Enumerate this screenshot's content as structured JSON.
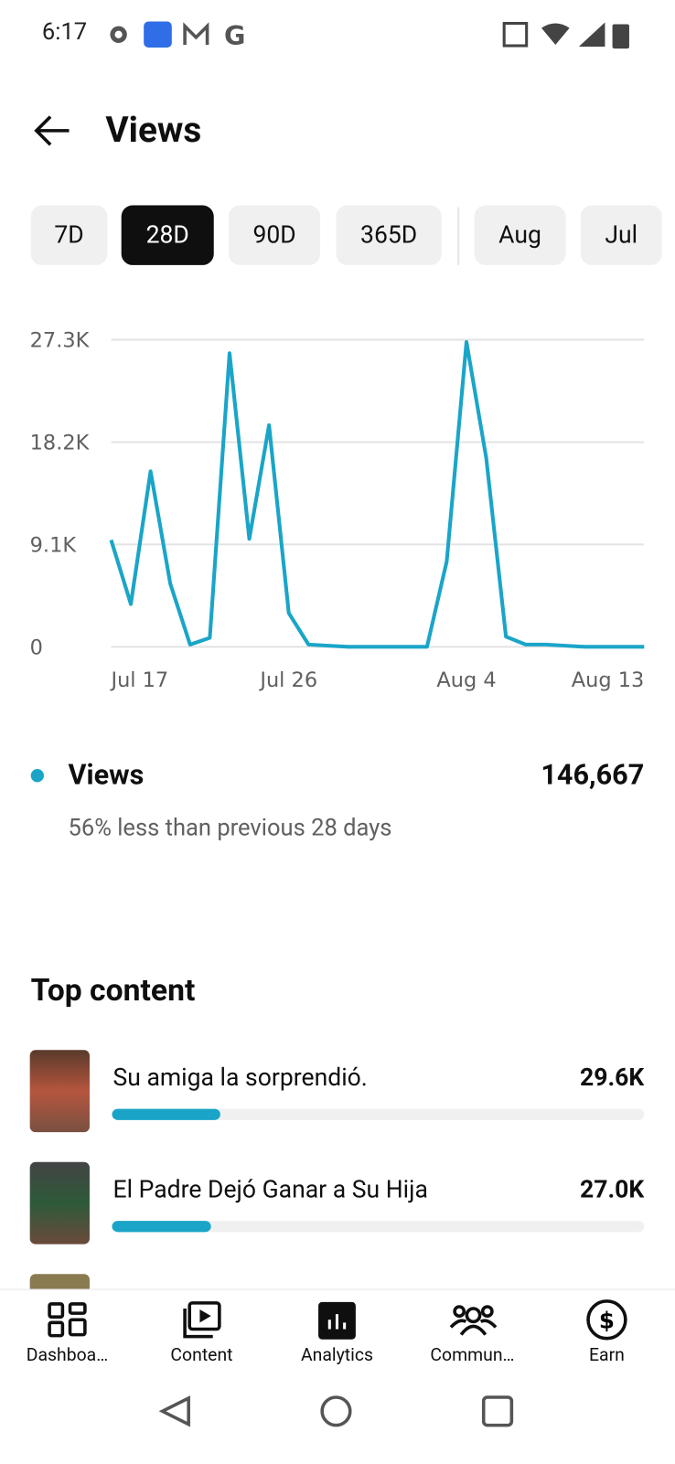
{
  "status_bar": {
    "time": "6:17"
  },
  "header": {
    "title": "Views"
  },
  "tabs": {
    "items": [
      "7D",
      "28D",
      "90D",
      "365D",
      "Aug",
      "Jul"
    ],
    "selected": 1
  },
  "chart_data": {
    "type": "line",
    "categories": [
      "Jul 17",
      null,
      null,
      null,
      null,
      null,
      null,
      null,
      null,
      "Jul 26",
      null,
      null,
      null,
      null,
      null,
      null,
      null,
      null,
      "Aug 4",
      null,
      null,
      null,
      null,
      null,
      null,
      null,
      null,
      "Aug 13"
    ],
    "series": [
      {
        "name": "Views",
        "color": "#1aa5c8",
        "values": [
          9500,
          3800,
          15600,
          5600,
          200,
          800,
          26100,
          9600,
          19700,
          3000,
          200,
          100,
          0,
          0,
          0,
          0,
          0,
          7600,
          27100,
          16800,
          900,
          200,
          200,
          100,
          0,
          0,
          0,
          0
        ]
      }
    ],
    "ylim": [
      0,
      27300
    ],
    "yticks": [
      0,
      {
        "value": 9100,
        "label": "9.1K"
      },
      {
        "value": 18200,
        "label": "18.2K"
      },
      {
        "value": 27300,
        "label": "27.3K"
      }
    ],
    "grid": true
  },
  "summary": {
    "total": "146,667",
    "comparison": "56% less than previous 28 days"
  },
  "top_content": {
    "heading": "Top content",
    "items": [
      {
        "title": "Su amiga la sorprendió.",
        "views": "29.6K"
      },
      {
        "title": "El Padre Dejó Ganar a Su Hija",
        "views": "27.0K"
      }
    ]
  },
  "nav": [
    "Dashboa…",
    "Content",
    "Analytics",
    "Commun…",
    "Earn"
  ]
}
